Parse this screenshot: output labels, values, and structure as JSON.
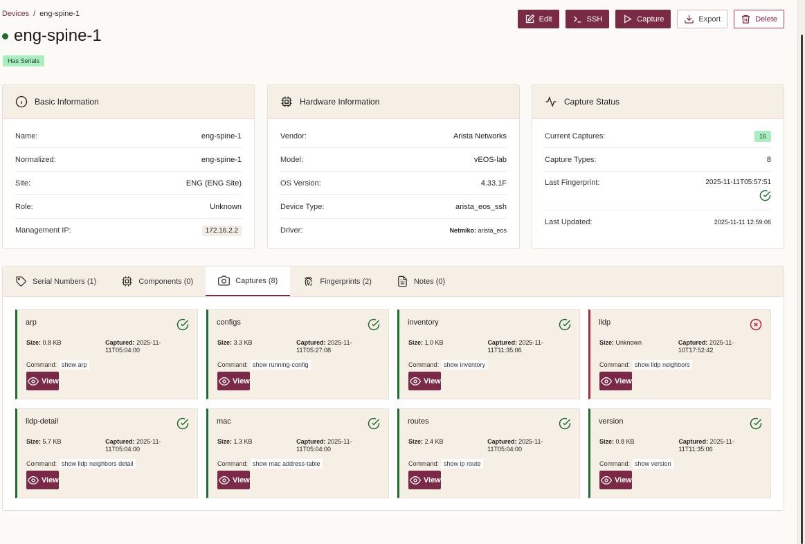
{
  "breadcrumb": {
    "root": "Devices",
    "sep": "/",
    "current": "eng-spine-1"
  },
  "device": {
    "title": "eng-spine-1",
    "badge": "Has Serials",
    "status_color": "#1e6b2f"
  },
  "actions": {
    "edit": "Edit",
    "ssh": "SSH",
    "capture": "Capture",
    "export": "Export",
    "delete": "Delete"
  },
  "basic": {
    "title": "Basic Information",
    "rows": [
      {
        "label": "Name:",
        "value": "eng-spine-1"
      },
      {
        "label": "Normalized:",
        "value": "eng-spine-1"
      },
      {
        "label": "Site:",
        "value": "ENG (ENG Site)"
      },
      {
        "label": "Role:",
        "value": "Unknown"
      },
      {
        "label": "Management IP:",
        "value": "172.16.2.2"
      }
    ]
  },
  "hardware": {
    "title": "Hardware Information",
    "rows": [
      {
        "label": "Vendor:",
        "value": "Arista Networks"
      },
      {
        "label": "Model:",
        "value": "vEOS-lab"
      },
      {
        "label": "OS Version:",
        "value": "4.33.1F"
      },
      {
        "label": "Device Type:",
        "value": "arista_eos_ssh"
      },
      {
        "label": "Driver:",
        "prefix": "Netmiko:",
        "value": "arista_eos"
      }
    ]
  },
  "capture_status": {
    "title": "Capture Status",
    "current_label": "Current Captures:",
    "current_value": "16",
    "types_label": "Capture Types:",
    "types_value": "8",
    "fingerprint_label": "Last Fingerprint:",
    "fingerprint_value": "2025-11-11T05:57:51",
    "updated_label": "Last Updated:",
    "updated_value": "2025-11-11 12:59:06"
  },
  "tabs": [
    {
      "label": "Serial Numbers (1)",
      "icon": "tag-icon"
    },
    {
      "label": "Components (0)",
      "icon": "chip-icon"
    },
    {
      "label": "Captures (8)",
      "icon": "camera-icon",
      "active": true
    },
    {
      "label": "Fingerprints (2)",
      "icon": "fingerprint-icon"
    },
    {
      "label": "Notes (0)",
      "icon": "note-icon"
    }
  ],
  "captures": {
    "size_label": "Size:",
    "captured_label": "Captured:",
    "command_label": "Command:",
    "view_label": "View",
    "items": [
      {
        "name": "arp",
        "size": "0.8 KB",
        "captured": "2025-11-11T05:04:00",
        "command": "show arp",
        "ok": true
      },
      {
        "name": "configs",
        "size": "3.3 KB",
        "captured": "2025-11-11T05:27:08",
        "command": "show running-config",
        "ok": true
      },
      {
        "name": "inventory",
        "size": "1.0 KB",
        "captured": "2025-11-11T11:35:06",
        "command": "show inventory",
        "ok": true
      },
      {
        "name": "lldp",
        "size": "Unknown",
        "captured": "2025-11-10T17:52:42",
        "command": "show lldp neighbors",
        "ok": false
      },
      {
        "name": "lldp-detail",
        "size": "5.7 KB",
        "captured": "2025-11-11T05:04:00",
        "command": "show lldp neighbors detail",
        "ok": true
      },
      {
        "name": "mac",
        "size": "1.3 KB",
        "captured": "2025-11-11T05:04:00",
        "command": "show mac address-table",
        "ok": true
      },
      {
        "name": "routes",
        "size": "2.4 KB",
        "captured": "2025-11-11T05:04:00",
        "command": "show ip route",
        "ok": true
      },
      {
        "name": "version",
        "size": "0.8 KB",
        "captured": "2025-11-11T11:35:06",
        "command": "show version",
        "ok": true
      }
    ]
  },
  "colors": {
    "accent": "#7a2a45",
    "success": "#1e6b2f",
    "error": "#b3263a"
  }
}
